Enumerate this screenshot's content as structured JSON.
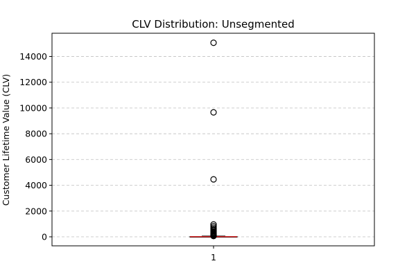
{
  "chart_data": {
    "type": "box",
    "title": "CLV Distribution: Unsegmented",
    "xlabel": "",
    "ylabel": "Customer Lifetime Value (CLV)",
    "categories": [
      "1"
    ],
    "ylim": [
      -700,
      15800
    ],
    "yticks": [
      0,
      2000,
      4000,
      6000,
      8000,
      10000,
      12000,
      14000
    ],
    "grid": "y-dashed",
    "box": {
      "q1": 0,
      "median": 10,
      "q3": 25,
      "whisker_low": 0,
      "whisker_high": 60
    },
    "outliers": [
      15060,
      9660,
      4460,
      960,
      820,
      700,
      600,
      520,
      440,
      380,
      320,
      260,
      210,
      170,
      140,
      110,
      90,
      60
    ],
    "colors": {
      "median": "#d62728",
      "box": "#000000",
      "outlier": "#000000",
      "grid": "#c8c8c8"
    }
  }
}
